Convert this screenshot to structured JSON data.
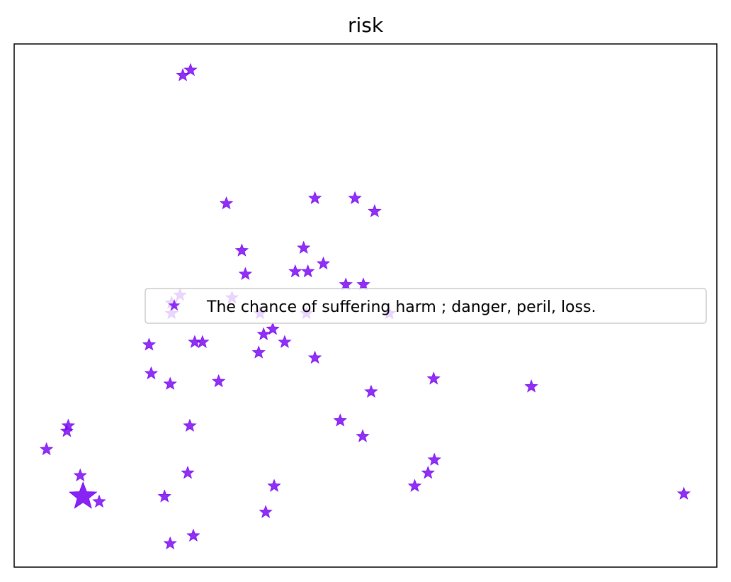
{
  "chart_data": {
    "type": "scatter",
    "title": "risk",
    "xlabel": "",
    "ylabel": "",
    "xlim": [
      0,
      100
    ],
    "ylim": [
      0,
      100
    ],
    "x_ticks_visible": false,
    "y_ticks_visible": false,
    "grid": false,
    "legend_position": "center-right",
    "marker": "star",
    "series": [
      {
        "name": "The chance of suffering harm ; danger, peril, loss.",
        "color": "#7b0cf2",
        "highlight": {
          "x": 9.8,
          "y": 13.5
        },
        "points": [
          {
            "x": 24.0,
            "y": 94.0
          },
          {
            "x": 25.1,
            "y": 95.0
          },
          {
            "x": 30.2,
            "y": 69.5
          },
          {
            "x": 42.8,
            "y": 70.5
          },
          {
            "x": 48.5,
            "y": 70.5
          },
          {
            "x": 51.3,
            "y": 68.0
          },
          {
            "x": 32.4,
            "y": 60.5
          },
          {
            "x": 41.2,
            "y": 61.0
          },
          {
            "x": 32.9,
            "y": 56.0
          },
          {
            "x": 40.0,
            "y": 56.5
          },
          {
            "x": 41.8,
            "y": 56.5
          },
          {
            "x": 44.0,
            "y": 58.0
          },
          {
            "x": 47.2,
            "y": 54.0
          },
          {
            "x": 49.7,
            "y": 54.0
          },
          {
            "x": 23.6,
            "y": 52.0
          },
          {
            "x": 31.0,
            "y": 51.5
          },
          {
            "x": 22.4,
            "y": 50.5
          },
          {
            "x": 22.4,
            "y": 48.5
          },
          {
            "x": 35.0,
            "y": 48.5
          },
          {
            "x": 41.6,
            "y": 48.5
          },
          {
            "x": 53.4,
            "y": 48.5
          },
          {
            "x": 35.5,
            "y": 44.5
          },
          {
            "x": 36.8,
            "y": 45.5
          },
          {
            "x": 38.5,
            "y": 43.0
          },
          {
            "x": 25.7,
            "y": 43.0
          },
          {
            "x": 26.8,
            "y": 43.0
          },
          {
            "x": 19.2,
            "y": 42.5
          },
          {
            "x": 34.8,
            "y": 41.0
          },
          {
            "x": 42.8,
            "y": 40.0
          },
          {
            "x": 19.5,
            "y": 37.0
          },
          {
            "x": 22.2,
            "y": 35.0
          },
          {
            "x": 29.1,
            "y": 35.5
          },
          {
            "x": 50.8,
            "y": 33.5
          },
          {
            "x": 59.7,
            "y": 36.0
          },
          {
            "x": 73.6,
            "y": 34.5
          },
          {
            "x": 46.4,
            "y": 28.0
          },
          {
            "x": 49.6,
            "y": 25.0
          },
          {
            "x": 25.0,
            "y": 27.0
          },
          {
            "x": 7.7,
            "y": 27.0
          },
          {
            "x": 7.5,
            "y": 26.0
          },
          {
            "x": 4.6,
            "y": 22.5
          },
          {
            "x": 9.4,
            "y": 17.5
          },
          {
            "x": 24.7,
            "y": 18.0
          },
          {
            "x": 59.8,
            "y": 20.5
          },
          {
            "x": 58.9,
            "y": 18.0
          },
          {
            "x": 37.0,
            "y": 15.5
          },
          {
            "x": 57.0,
            "y": 15.5
          },
          {
            "x": 12.1,
            "y": 12.5
          },
          {
            "x": 21.4,
            "y": 13.5
          },
          {
            "x": 95.3,
            "y": 14.0
          },
          {
            "x": 35.8,
            "y": 10.5
          },
          {
            "x": 25.5,
            "y": 6.0
          },
          {
            "x": 22.2,
            "y": 4.5
          }
        ]
      }
    ]
  }
}
